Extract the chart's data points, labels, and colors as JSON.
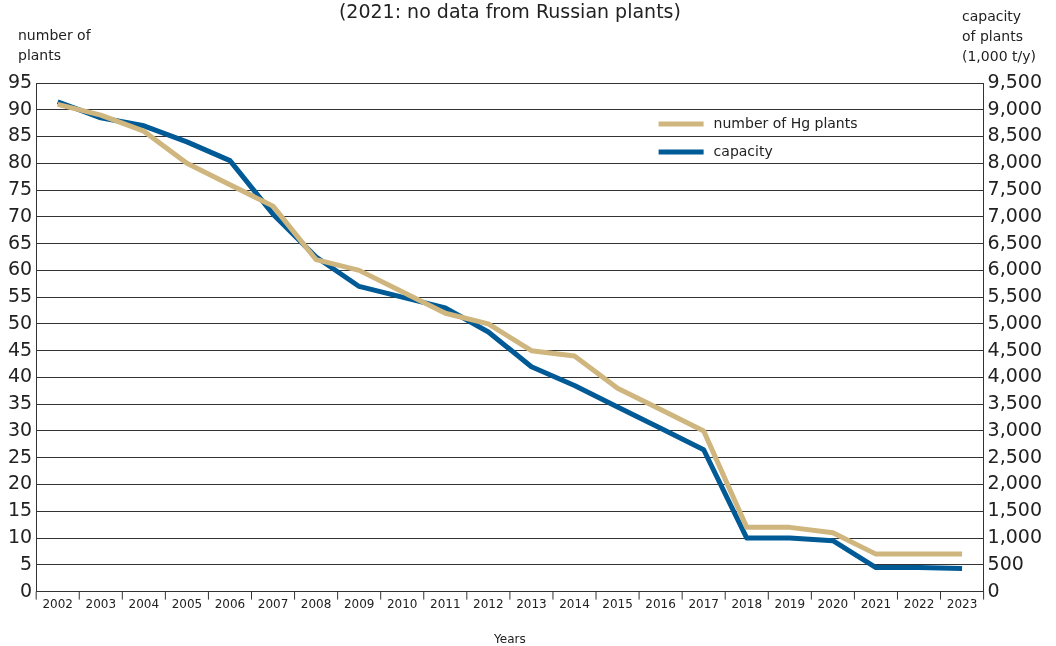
{
  "chart_data": {
    "type": "line",
    "title": "(2021: no data from Russian plants)",
    "xlabel": "Years",
    "ylabel": "number of plants",
    "y2label": "capacity of plants (1,000 t/y)",
    "categories": [
      "2002",
      "2003",
      "2004",
      "2005",
      "2006",
      "2007",
      "2008",
      "2009",
      "2010",
      "2011",
      "2012",
      "2013",
      "2014",
      "2015",
      "2016",
      "2017",
      "2018",
      "2019",
      "2020",
      "2021",
      "2022",
      "2023"
    ],
    "series": [
      {
        "name": "number of Hg plants",
        "color": "#cfb57e",
        "values": [
          91,
          89,
          86,
          80,
          76,
          72,
          62,
          60,
          56,
          52,
          50,
          45,
          44,
          38,
          34,
          30,
          12,
          12,
          11,
          7,
          7,
          7
        ]
      },
      {
        "name": "capacity",
        "color": "#005a96",
        "axis": "y2",
        "values": [
          9150,
          8850,
          8700,
          8400,
          8050,
          7050,
          6250,
          5700,
          5500,
          5300,
          4850,
          4200,
          3850,
          3450,
          3050,
          2650,
          1000,
          1000,
          950,
          450,
          450,
          430
        ]
      }
    ],
    "ylim": [
      0,
      95
    ],
    "yticks": [
      0,
      5,
      10,
      15,
      20,
      25,
      30,
      35,
      40,
      45,
      50,
      55,
      60,
      65,
      70,
      75,
      80,
      85,
      90,
      95
    ],
    "y2lim": [
      0,
      9500
    ],
    "y2ticks": [
      0,
      {
        "value": 500,
        "label": "500"
      },
      {
        "value": 1000,
        "label": "1,000"
      },
      {
        "value": 1500,
        "label": "1,500"
      },
      {
        "value": 2000,
        "label": "2,000"
      },
      {
        "value": 2500,
        "label": "2,500"
      },
      {
        "value": 3000,
        "label": "3,000"
      },
      {
        "value": 3500,
        "label": "3,500"
      },
      {
        "value": 4000,
        "label": "4,000"
      },
      {
        "value": 4500,
        "label": "4,500"
      },
      {
        "value": 5000,
        "label": "5,000"
      },
      {
        "value": 5500,
        "label": "5,500"
      },
      {
        "value": 6000,
        "label": "6,000"
      },
      {
        "value": 6500,
        "label": "6,500"
      },
      {
        "value": 7000,
        "label": "7,000"
      },
      {
        "value": 7500,
        "label": "7,500"
      },
      {
        "value": 8000,
        "label": "8,000"
      },
      {
        "value": 8500,
        "label": "8,500"
      },
      {
        "value": 9000,
        "label": "9,000"
      },
      {
        "value": 9500,
        "label": "9,500"
      }
    ],
    "grid": "y",
    "legend": "top right",
    "marker": "none",
    "line_style": "solid"
  }
}
